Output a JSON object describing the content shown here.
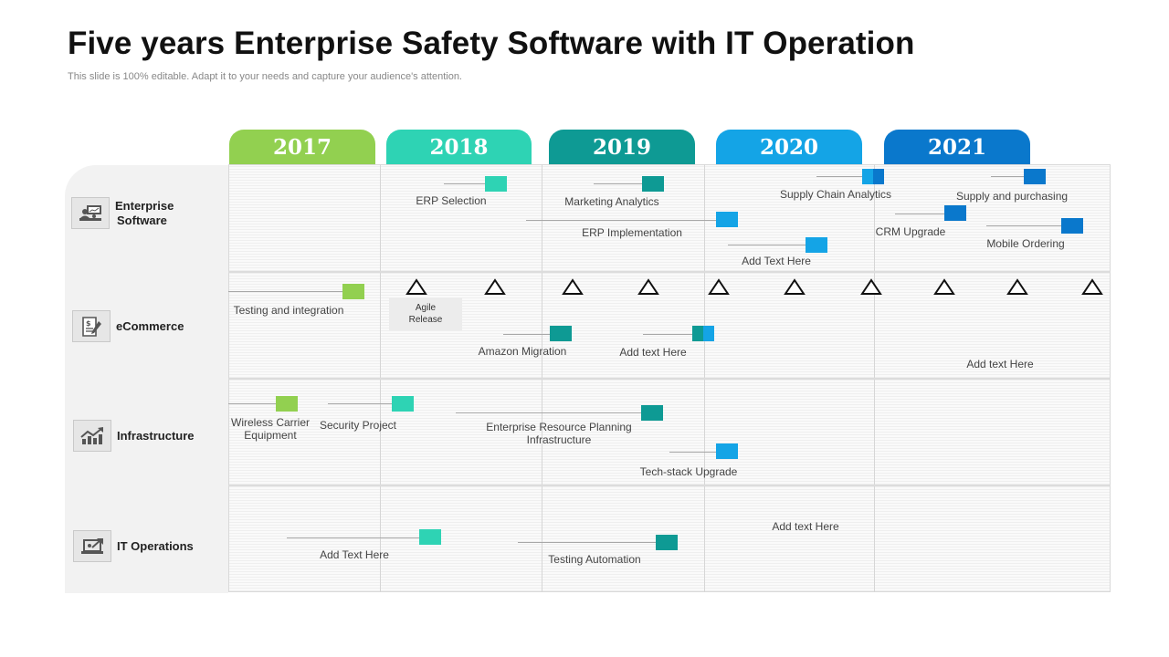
{
  "title": "Five years Enterprise Safety Software with IT Operation",
  "subtitle": "This slide is 100% editable. Adapt it to your needs and capture your audience's attention.",
  "colors": {
    "green": "#92d050",
    "mint": "#2ed3b4",
    "teal": "#0e9a94",
    "sky": "#14a4e6",
    "blue": "#0a78cc"
  },
  "years": [
    {
      "label": "2017",
      "color": "#92d050"
    },
    {
      "label": "2018",
      "color": "#2ed3b4"
    },
    {
      "label": "2019",
      "color": "#0e9a94"
    },
    {
      "label": "2020",
      "color": "#14a4e6"
    },
    {
      "label": "2021",
      "color": "#0a78cc"
    }
  ],
  "categories": [
    {
      "label_line1": "Enterprise",
      "label_line2": "Software",
      "icon": "enterprise-software-icon"
    },
    {
      "label": "eCommerce",
      "icon": "invoice-icon"
    },
    {
      "label": "Infrastructure",
      "icon": "trend-chart-icon"
    },
    {
      "label": "IT Operations",
      "icon": "laptop-rocket-icon"
    }
  ],
  "milestones": {
    "erp_selection": "ERP Selection",
    "marketing_analytics": "Marketing Analytics",
    "erp_implementation": "ERP Implementation",
    "add_text_here_1": "Add Text Here",
    "supply_chain_analytics": "Supply Chain Analytics",
    "supply_and_purchasing": "Supply and purchasing",
    "crm_upgrade": "CRM Upgrade",
    "mobile_ordering": "Mobile Ordering",
    "testing_and_integration": "Testing and integration",
    "agile_release_line1": "Agile",
    "agile_release_line2": "Release",
    "amazon_migration": "Amazon Migration",
    "add_text_here_2": "Add text Here",
    "add_text_here_3": "Add text Here",
    "wireless_carrier_line1": "Wireless Carrier",
    "wireless_carrier_line2": "Equipment",
    "security_project": "Security Project",
    "erp_infra_line1": "Enterprise Resource Planning",
    "erp_infra_line2": "Infrastructure",
    "tech_stack_upgrade": "Tech-stack Upgrade",
    "add_text_here_4": "Add text Here",
    "add_text_here_5": "Add Text Here",
    "testing_automation": "Testing Automation"
  }
}
